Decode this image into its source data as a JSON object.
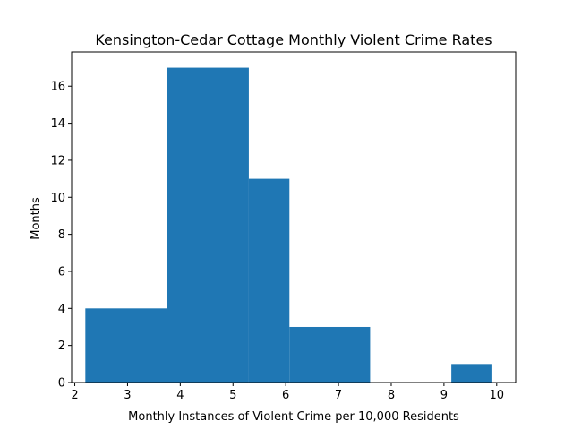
{
  "chart_data": {
    "type": "histogram",
    "title": "Kensington-Cedar Cottage Monthly Violent Crime Rates",
    "xlabel": "Monthly Instances of Violent Crime per 10,000 Residents",
    "ylabel": "Months",
    "xlim": [
      1.94,
      10.36
    ],
    "ylim": [
      0,
      17.85
    ],
    "xticks": [
      2,
      3,
      4,
      5,
      6,
      7,
      8,
      9,
      10
    ],
    "yticks": [
      0,
      2,
      4,
      6,
      8,
      10,
      12,
      14,
      16
    ],
    "bins": [
      {
        "x0": 2.2,
        "x1": 3.75,
        "count": 4
      },
      {
        "x0": 3.75,
        "x1": 5.3,
        "count": 17
      },
      {
        "x0": 5.3,
        "x1": 6.07,
        "count": 11
      },
      {
        "x0": 6.07,
        "x1": 7.6,
        "count": 3
      },
      {
        "x0": 7.6,
        "x1": 9.14,
        "count": 0
      },
      {
        "x0": 9.14,
        "x1": 9.9,
        "count": 1
      }
    ],
    "bar_color": "#1f77b4",
    "grid": false
  }
}
